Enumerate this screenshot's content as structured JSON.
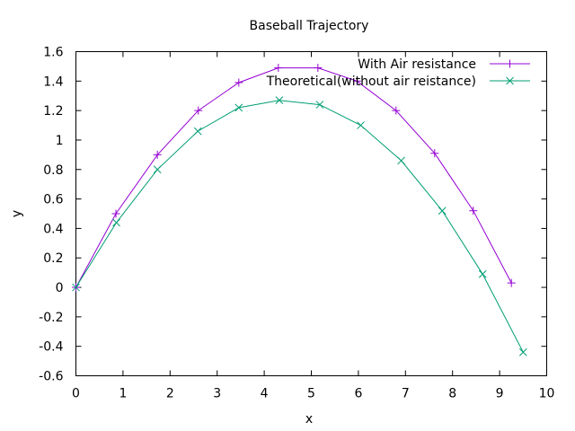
{
  "chart_data": {
    "type": "line",
    "title": "Baseball Trajectory",
    "xlabel": "x",
    "ylabel": "y",
    "xlim": [
      0,
      10
    ],
    "ylim": [
      -0.6,
      1.6
    ],
    "xticks": [
      0,
      1,
      2,
      3,
      4,
      5,
      6,
      7,
      8,
      9,
      10
    ],
    "xtick_labels": [
      "0",
      "1",
      "2",
      "3",
      "4",
      "5",
      "6",
      "7",
      "8",
      "9",
      "10"
    ],
    "yticks": [
      -0.6,
      -0.4,
      -0.2,
      0,
      0.2,
      0.4,
      0.6,
      0.8,
      1,
      1.2,
      1.4,
      1.6
    ],
    "ytick_labels": [
      "-0.6",
      "-0.4",
      "-0.2",
      "0",
      "0.2",
      "0.4",
      "0.6",
      "0.8",
      "1",
      "1.2",
      "1.4",
      "1.6"
    ],
    "grid": false,
    "legend_position": "top-right",
    "series": [
      {
        "name": "With Air resistance",
        "color": "#9400d3",
        "marker": "plus",
        "x": [
          0,
          0.85,
          1.73,
          2.6,
          3.46,
          4.3,
          5.14,
          5.97,
          6.8,
          7.62,
          8.44,
          9.25
        ],
        "y": [
          0,
          0.5,
          0.9,
          1.2,
          1.39,
          1.49,
          1.49,
          1.4,
          1.2,
          0.91,
          0.52,
          0.03
        ]
      },
      {
        "name": "Theoretical(without air reistance)",
        "color": "#009e73",
        "marker": "cross",
        "x": [
          0,
          0.86,
          1.73,
          2.59,
          3.46,
          4.32,
          5.18,
          6.05,
          6.91,
          7.78,
          8.64,
          9.5
        ],
        "y": [
          0,
          0.44,
          0.8,
          1.06,
          1.22,
          1.27,
          1.24,
          1.1,
          0.86,
          0.52,
          0.09,
          -0.44
        ]
      }
    ]
  }
}
